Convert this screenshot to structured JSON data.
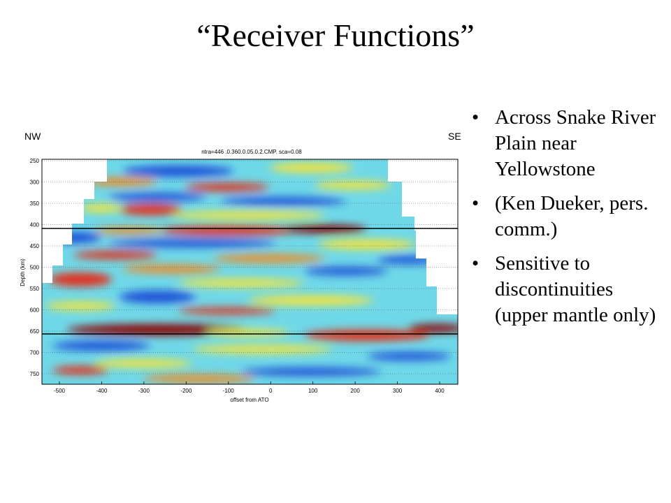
{
  "slide": {
    "title": "“Receiver Functions”",
    "bullets": [
      "Across Snake River Plain near Yellowstone",
      "(Ken Dueker, pers. comm.)",
      "Sensitive to discontinuities (upper mantle only)"
    ]
  },
  "figure": {
    "left_label": "NW",
    "right_label": "SE",
    "header": "ntra=446 .0.360.0.05.0.2.CMP. sca=0.08",
    "ylabel": "Depth (km)",
    "xlabel": "offset from ATO",
    "y_ticks": [
      "250",
      "300",
      "350",
      "400",
      "450",
      "500",
      "550",
      "600",
      "650",
      "700",
      "750"
    ],
    "x_ticks": [
      "-500",
      "-400",
      "-300",
      "-200",
      "-100",
      "0",
      "100",
      "200",
      "300",
      "400"
    ],
    "reference_lines_km": [
      410,
      660
    ],
    "colors": {
      "deep_red": "#8b0000",
      "red": "#e0301e",
      "orange": "#f08a24",
      "yellow": "#f4e43a",
      "cyan": "#6fd8e8",
      "blue": "#1f4fd8"
    }
  }
}
